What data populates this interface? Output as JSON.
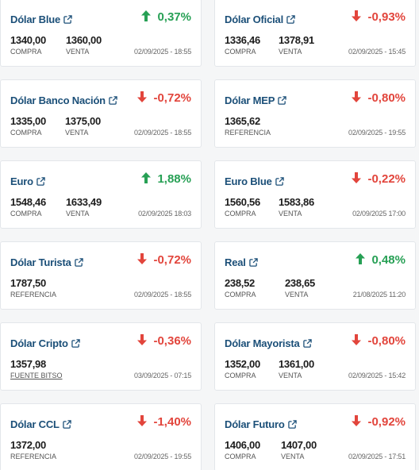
{
  "colors": {
    "title": "#1b4f78",
    "up": "#27a055",
    "down": "#e2453c"
  },
  "cards": [
    {
      "title": "Dólar Blue",
      "direction": "up",
      "change": "0,37%",
      "values": [
        {
          "value": "1340,00",
          "label": "COMPRA"
        },
        {
          "value": "1360,00",
          "label": "VENTA"
        }
      ],
      "date": "02/09/2025 - 18:55"
    },
    {
      "title": "Dólar Oficial",
      "direction": "down",
      "change": "-0,93%",
      "values": [
        {
          "value": "1336,46",
          "label": "COMPRA"
        },
        {
          "value": "1378,91",
          "label": "VENTA"
        }
      ],
      "date": "02/09/2025 - 15:45"
    },
    {
      "title": "Dólar Banco Nación",
      "direction": "down",
      "change": "-0,72%",
      "values": [
        {
          "value": "1335,00",
          "label": "COMPRA"
        },
        {
          "value": "1375,00",
          "label": "VENTA"
        }
      ],
      "date": "02/09/2025 - 18:55"
    },
    {
      "title": "Dólar MEP",
      "direction": "down",
      "change": "-0,80%",
      "values": [
        {
          "value": "1365,62",
          "label": "REFERENCIA"
        }
      ],
      "date": "02/09/2025 - 19:55"
    },
    {
      "title": "Euro",
      "direction": "up",
      "change": "1,88%",
      "values": [
        {
          "value": "1548,46",
          "label": "COMPRA"
        },
        {
          "value": "1633,49",
          "label": "VENTA"
        }
      ],
      "date": "02/09/2025 18:03"
    },
    {
      "title": "Euro Blue",
      "direction": "down",
      "change": "-0,22%",
      "values": [
        {
          "value": "1560,56",
          "label": "COMPRA"
        },
        {
          "value": "1583,86",
          "label": "VENTA"
        }
      ],
      "date": "02/09/2025 17:00"
    },
    {
      "title": "Dólar Turista",
      "direction": "down",
      "change": "-0,72%",
      "values": [
        {
          "value": "1787,50",
          "label": "REFERENCIA"
        }
      ],
      "date": "02/09/2025 - 18:55"
    },
    {
      "title": "Real",
      "direction": "up",
      "change": "0,48%",
      "values": [
        {
          "value": "238,52",
          "label": "COMPRA"
        },
        {
          "value": "238,65",
          "label": "VENTA"
        }
      ],
      "date": "21/08/2025 11:20"
    },
    {
      "title": "Dólar Cripto",
      "direction": "down",
      "change": "-0,36%",
      "values": [
        {
          "value": "1357,98",
          "label": "FUENTE BITSO",
          "underline": true
        }
      ],
      "date": "03/09/2025 - 07:15"
    },
    {
      "title": "Dólar Mayorista",
      "direction": "down",
      "change": "-0,80%",
      "values": [
        {
          "value": "1352,00",
          "label": "COMPRA"
        },
        {
          "value": "1361,00",
          "label": "VENTA"
        }
      ],
      "date": "02/09/2025 - 15:42"
    },
    {
      "title": "Dólar CCL",
      "direction": "down",
      "change": "-1,40%",
      "values": [
        {
          "value": "1372,00",
          "label": "REFERENCIA"
        }
      ],
      "date": "02/09/2025 - 19:55"
    },
    {
      "title": "Dólar Futuro",
      "direction": "down",
      "change": "-0,92%",
      "values": [
        {
          "value": "1406,00",
          "label": "COMPRA"
        },
        {
          "value": "1407,00",
          "label": "VENTA"
        }
      ],
      "date": "02/09/2025 - 17:51"
    }
  ]
}
